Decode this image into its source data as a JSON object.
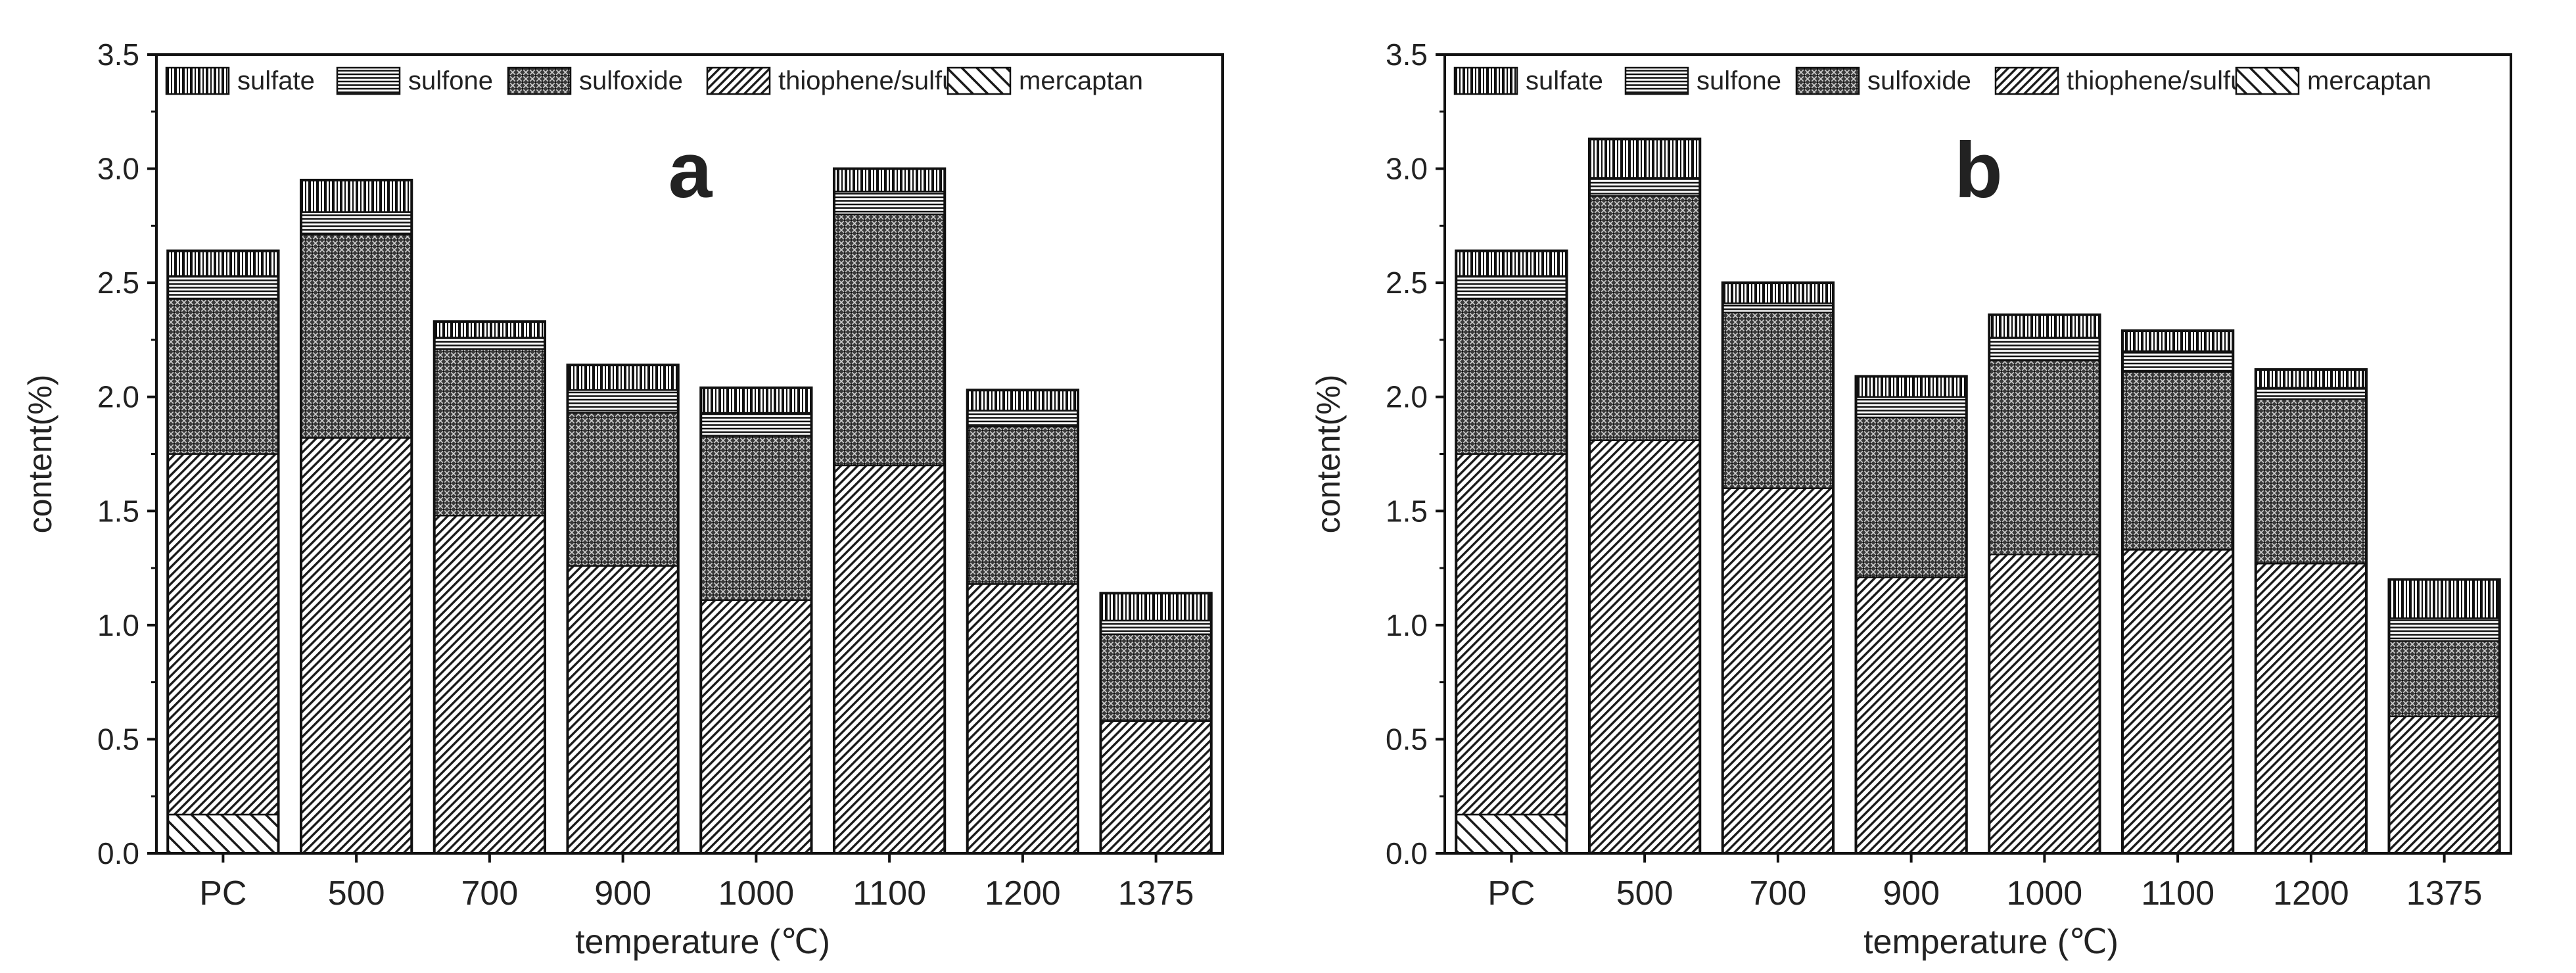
{
  "chart_data": [
    {
      "type": "bar",
      "stacked": true,
      "panel_label": "a",
      "title": "",
      "xlabel": "temperature (℃)",
      "ylabel": "content(%)",
      "ylim": [
        0,
        3.5
      ],
      "yticks": [
        "0.0",
        "0.5",
        "1.0",
        "1.5",
        "2.0",
        "2.5",
        "3.0",
        "3.5"
      ],
      "categories": [
        "PC",
        "500",
        "700",
        "900",
        "1000",
        "1100",
        "1200",
        "1375"
      ],
      "legend_position": "top",
      "series": [
        {
          "name": "mercaptan",
          "pattern": "mercaptan",
          "values": [
            0.17,
            0,
            0,
            0,
            0,
            0,
            0,
            0
          ]
        },
        {
          "name": "thiophene/sulfur",
          "pattern": "thiophene",
          "values": [
            1.58,
            1.82,
            1.48,
            1.26,
            1.11,
            1.7,
            1.18,
            0.58
          ]
        },
        {
          "name": "sulfoxide",
          "pattern": "sulfoxide",
          "values": [
            0.68,
            0.89,
            0.73,
            0.67,
            0.72,
            1.1,
            0.69,
            0.38
          ]
        },
        {
          "name": "sulfone",
          "pattern": "sulfone",
          "values": [
            0.1,
            0.1,
            0.05,
            0.1,
            0.1,
            0.1,
            0.07,
            0.06
          ]
        },
        {
          "name": "sulfate",
          "pattern": "sulfate",
          "values": [
            0.11,
            0.14,
            0.07,
            0.11,
            0.11,
            0.1,
            0.09,
            0.12
          ]
        }
      ]
    },
    {
      "type": "bar",
      "stacked": true,
      "panel_label": "b",
      "title": "",
      "xlabel": "temperature (℃)",
      "ylabel": "content(%)",
      "ylim": [
        0,
        3.5
      ],
      "yticks": [
        "0.0",
        "0.5",
        "1.0",
        "1.5",
        "2.0",
        "2.5",
        "3.0",
        "3.5"
      ],
      "categories": [
        "PC",
        "500",
        "700",
        "900",
        "1000",
        "1100",
        "1200",
        "1375"
      ],
      "legend_position": "top",
      "series": [
        {
          "name": "mercaptan",
          "pattern": "mercaptan",
          "values": [
            0.17,
            0,
            0,
            0,
            0,
            0,
            0,
            0
          ]
        },
        {
          "name": "thiophene/sulfur",
          "pattern": "thiophene",
          "values": [
            1.58,
            1.81,
            1.6,
            1.21,
            1.31,
            1.33,
            1.27,
            0.6
          ]
        },
        {
          "name": "sulfoxide",
          "pattern": "sulfoxide",
          "values": [
            0.68,
            1.07,
            0.77,
            0.7,
            0.85,
            0.78,
            0.72,
            0.33
          ]
        },
        {
          "name": "sulfone",
          "pattern": "sulfone",
          "values": [
            0.1,
            0.08,
            0.04,
            0.09,
            0.1,
            0.09,
            0.05,
            0.1
          ]
        },
        {
          "name": "sulfate",
          "pattern": "sulfate",
          "values": [
            0.11,
            0.17,
            0.09,
            0.09,
            0.1,
            0.09,
            0.08,
            0.17
          ]
        }
      ]
    }
  ]
}
